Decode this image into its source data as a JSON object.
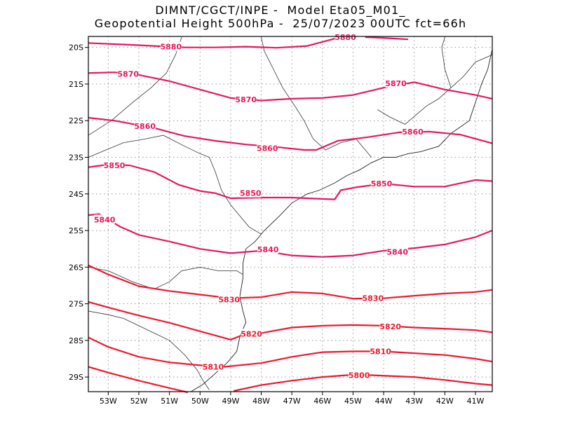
{
  "header": {
    "line1": "DIMNT/CGCT/INPE -  Model Eta05_M01_",
    "line2": "Geopotential Height 500hPa -  25/07/2023 00UTC fct=66h"
  },
  "axes": {
    "lon_range": [
      -53.65,
      -40.45
    ],
    "lat_range": [
      -29.4,
      -19.7
    ],
    "lon_ticks": [
      {
        "value": -53,
        "label": "53W"
      },
      {
        "value": -52,
        "label": "52W"
      },
      {
        "value": -51,
        "label": "51W"
      },
      {
        "value": -50,
        "label": "50W"
      },
      {
        "value": -49,
        "label": "49W"
      },
      {
        "value": -48,
        "label": "48W"
      },
      {
        "value": -47,
        "label": "47W"
      },
      {
        "value": -46,
        "label": "46W"
      },
      {
        "value": -45,
        "label": "45W"
      },
      {
        "value": -44,
        "label": "44W"
      },
      {
        "value": -43,
        "label": "43W"
      },
      {
        "value": -42,
        "label": "42W"
      },
      {
        "value": -41,
        "label": "41W"
      }
    ],
    "lat_ticks": [
      {
        "value": -20,
        "label": "20S"
      },
      {
        "value": -21,
        "label": "21S"
      },
      {
        "value": -22,
        "label": "22S"
      },
      {
        "value": -23,
        "label": "23S"
      },
      {
        "value": -24,
        "label": "24S"
      },
      {
        "value": -25,
        "label": "25S"
      },
      {
        "value": -26,
        "label": "26S"
      },
      {
        "value": -27,
        "label": "27S"
      },
      {
        "value": -28,
        "label": "28S"
      },
      {
        "value": -29,
        "label": "29S"
      }
    ],
    "grid": "dotted"
  },
  "contours": [
    {
      "level": "5880",
      "color": "#e8185a",
      "labels": [
        [
          -50.95,
          -19.98
        ],
        [
          -45.25,
          -19.72
        ]
      ],
      "points": [
        [
          -53.65,
          -19.88
        ],
        [
          -52.5,
          -19.92
        ],
        [
          -51.5,
          -19.96
        ],
        [
          -50.5,
          -20.0
        ],
        [
          -49.5,
          -20.0
        ],
        [
          -48.5,
          -19.98
        ],
        [
          -47.5,
          -20.01
        ],
        [
          -46.5,
          -19.96
        ],
        [
          -45.5,
          -19.74
        ],
        [
          -45,
          -19.72
        ]
      ]
    },
    {
      "level": "5880",
      "color": "#e8185a",
      "labels": [],
      "points": [
        [
          -44.6,
          -19.72
        ],
        [
          -44,
          -19.74
        ],
        [
          -43.2,
          -19.78
        ]
      ]
    },
    {
      "level": "5870",
      "color": "#e8185a",
      "labels": [
        [
          -52.35,
          -20.72
        ],
        [
          -48.5,
          -21.42
        ],
        [
          -43.6,
          -20.98
        ]
      ],
      "points": [
        [
          -53.65,
          -20.7
        ],
        [
          -52.8,
          -20.68
        ],
        [
          -52,
          -20.75
        ],
        [
          -51,
          -20.92
        ],
        [
          -50,
          -21.15
        ],
        [
          -49,
          -21.38
        ],
        [
          -48,
          -21.45
        ],
        [
          -47,
          -21.4
        ],
        [
          -46,
          -21.38
        ],
        [
          -45,
          -21.3
        ],
        [
          -44,
          -21.1
        ],
        [
          -43,
          -20.95
        ],
        [
          -42,
          -21.15
        ],
        [
          -41,
          -21.3
        ],
        [
          -40.45,
          -21.4
        ]
      ]
    },
    {
      "level": "5860",
      "color": "#e8185a",
      "labels": [
        [
          -51.8,
          -22.15
        ],
        [
          -47.8,
          -22.75
        ],
        [
          -43.05,
          -22.3
        ]
      ],
      "points": [
        [
          -53.65,
          -21.92
        ],
        [
          -52.8,
          -22.0
        ],
        [
          -51.5,
          -22.2
        ],
        [
          -50.5,
          -22.42
        ],
        [
          -49.5,
          -22.55
        ],
        [
          -48.5,
          -22.65
        ],
        [
          -47.5,
          -22.72
        ],
        [
          -46.6,
          -22.8
        ],
        [
          -46.2,
          -22.8
        ],
        [
          -45.5,
          -22.55
        ],
        [
          -44.5,
          -22.45
        ],
        [
          -43.5,
          -22.32
        ],
        [
          -42.5,
          -22.3
        ],
        [
          -41.5,
          -22.38
        ],
        [
          -40.45,
          -22.62
        ]
      ]
    },
    {
      "level": "5850",
      "color": "#e8185a",
      "labels": [
        [
          -52.8,
          -23.22
        ],
        [
          -48.35,
          -23.98
        ],
        [
          -44.07,
          -23.72
        ]
      ],
      "points": [
        [
          -53.65,
          -23.27
        ],
        [
          -53,
          -23.2
        ],
        [
          -52.3,
          -23.22
        ],
        [
          -51.5,
          -23.4
        ],
        [
          -50.7,
          -23.75
        ],
        [
          -50,
          -23.92
        ],
        [
          -49.5,
          -23.98
        ],
        [
          -49,
          -24.12
        ],
        [
          -48,
          -24.1
        ],
        [
          -47,
          -24.1
        ],
        [
          -46.5,
          -24.12
        ],
        [
          -45.6,
          -24.15
        ],
        [
          -45.4,
          -23.9
        ],
        [
          -44.9,
          -23.82
        ],
        [
          -44,
          -23.72
        ],
        [
          -43,
          -23.8
        ],
        [
          -42,
          -23.8
        ],
        [
          -41,
          -23.62
        ],
        [
          -40.45,
          -23.65
        ]
      ]
    },
    {
      "level": "5840",
      "color": "#e8185a",
      "labels": [
        [
          -53.12,
          -24.7
        ],
        [
          -47.78,
          -25.52
        ],
        [
          -43.55,
          -25.58
        ]
      ],
      "points": [
        [
          -53.65,
          -24.58
        ],
        [
          -53.3,
          -24.55
        ],
        [
          -52.6,
          -24.9
        ],
        [
          -52,
          -25.12
        ],
        [
          -51,
          -25.3
        ],
        [
          -50,
          -25.5
        ],
        [
          -49,
          -25.62
        ],
        [
          -48,
          -25.55
        ],
        [
          -47,
          -25.68
        ],
        [
          -46,
          -25.72
        ],
        [
          -45,
          -25.68
        ],
        [
          -44,
          -25.55
        ],
        [
          -43,
          -25.48
        ],
        [
          -42,
          -25.38
        ],
        [
          -41,
          -25.18
        ],
        [
          -40.45,
          -25.0
        ]
      ]
    },
    {
      "level": "5830",
      "color": "#f01830",
      "labels": [
        [
          -49.05,
          -26.88
        ],
        [
          -44.35,
          -26.85
        ]
      ],
      "points": [
        [
          -53.65,
          -25.95
        ],
        [
          -53,
          -26.2
        ],
        [
          -52,
          -26.52
        ],
        [
          -51,
          -26.65
        ],
        [
          -50,
          -26.75
        ],
        [
          -49,
          -26.85
        ],
        [
          -48,
          -26.82
        ],
        [
          -47,
          -26.68
        ],
        [
          -46,
          -26.72
        ],
        [
          -45,
          -26.86
        ],
        [
          -44,
          -26.85
        ],
        [
          -43,
          -26.78
        ],
        [
          -42,
          -26.72
        ],
        [
          -41,
          -26.68
        ],
        [
          -40.45,
          -26.62
        ]
      ]
    },
    {
      "level": "5820",
      "color": "#f01830",
      "labels": [
        [
          -48.32,
          -27.82
        ],
        [
          -43.78,
          -27.62
        ]
      ],
      "points": [
        [
          -53.65,
          -26.95
        ],
        [
          -53,
          -27.1
        ],
        [
          -52,
          -27.32
        ],
        [
          -51,
          -27.52
        ],
        [
          -50,
          -27.75
        ],
        [
          -49,
          -27.98
        ],
        [
          -48.5,
          -27.82
        ],
        [
          -48,
          -27.8
        ],
        [
          -47,
          -27.65
        ],
        [
          -46,
          -27.6
        ],
        [
          -45,
          -27.58
        ],
        [
          -44,
          -27.6
        ],
        [
          -43,
          -27.65
        ],
        [
          -42,
          -27.68
        ],
        [
          -41,
          -27.72
        ],
        [
          -40.45,
          -27.78
        ]
      ]
    },
    {
      "level": "5810",
      "color": "#f01830",
      "labels": [
        [
          -49.57,
          -28.72
        ],
        [
          -44.1,
          -28.3
        ]
      ],
      "points": [
        [
          -53.65,
          -27.92
        ],
        [
          -53,
          -28.18
        ],
        [
          -52,
          -28.45
        ],
        [
          -51,
          -28.6
        ],
        [
          -50,
          -28.68
        ],
        [
          -49.2,
          -28.72
        ],
        [
          -48,
          -28.62
        ],
        [
          -47,
          -28.45
        ],
        [
          -46,
          -28.32
        ],
        [
          -45,
          -28.3
        ],
        [
          -44,
          -28.3
        ],
        [
          -43,
          -28.35
        ],
        [
          -42,
          -28.4
        ],
        [
          -41,
          -28.5
        ],
        [
          -40.45,
          -28.58
        ]
      ]
    },
    {
      "level": "5800",
      "color": "#f01830",
      "labels": [
        [
          -44.8,
          -28.95
        ]
      ],
      "points": [
        [
          -53.65,
          -28.72
        ],
        [
          -53,
          -28.88
        ],
        [
          -52,
          -29.1
        ],
        [
          -51,
          -29.3
        ],
        [
          -50.4,
          -29.42
        ]
      ]
    },
    {
      "level": "5800",
      "color": "#f01830",
      "labels": [],
      "points": [
        [
          -48.9,
          -29.38
        ],
        [
          -48,
          -29.22
        ],
        [
          -47,
          -29.1
        ],
        [
          -46,
          -29.0
        ],
        [
          -45.2,
          -28.95
        ],
        [
          -44.4,
          -28.95
        ],
        [
          -43,
          -29.0
        ],
        [
          -42,
          -29.08
        ],
        [
          -41,
          -29.18
        ],
        [
          -40.45,
          -29.22
        ]
      ]
    }
  ],
  "boundaries": [
    [
      [
        -53.65,
        -23.0
      ],
      [
        -52.5,
        -22.6
      ],
      [
        -51.8,
        -22.5
      ],
      [
        -51.2,
        -22.4
      ],
      [
        -50.5,
        -22.7
      ],
      [
        -50.0,
        -22.9
      ],
      [
        -49.7,
        -23.0
      ],
      [
        -49.5,
        -23.4
      ],
      [
        -49.3,
        -23.9
      ],
      [
        -49.0,
        -24.3
      ],
      [
        -48.7,
        -24.6
      ],
      [
        -48.4,
        -24.9
      ],
      [
        -48.0,
        -25.1
      ]
    ],
    [
      [
        -53.65,
        -26.0
      ],
      [
        -53.0,
        -26.1
      ],
      [
        -52.2,
        -26.4
      ],
      [
        -51.5,
        -26.6
      ],
      [
        -51.0,
        -26.4
      ],
      [
        -50.6,
        -26.1
      ],
      [
        -50.0,
        -26.0
      ],
      [
        -49.4,
        -26.1
      ],
      [
        -48.8,
        -26.1
      ],
      [
        -48.6,
        -26.2
      ]
    ],
    [
      [
        -53.65,
        -27.2
      ],
      [
        -53.0,
        -27.3
      ],
      [
        -52.5,
        -27.4
      ],
      [
        -52.0,
        -27.6
      ],
      [
        -51.5,
        -27.8
      ],
      [
        -51.0,
        -28.0
      ],
      [
        -50.5,
        -28.4
      ],
      [
        -50.1,
        -28.8
      ],
      [
        -49.9,
        -29.1
      ],
      [
        -49.7,
        -29.35
      ]
    ],
    [
      [
        -50.6,
        -19.72
      ],
      [
        -50.8,
        -20.2
      ],
      [
        -51.1,
        -20.7
      ],
      [
        -51.6,
        -21.1
      ],
      [
        -52.2,
        -21.5
      ],
      [
        -52.9,
        -22.0
      ],
      [
        -53.65,
        -22.4
      ]
    ],
    [
      [
        -48.0,
        -19.72
      ],
      [
        -47.9,
        -20.1
      ],
      [
        -47.6,
        -20.6
      ],
      [
        -47.3,
        -21.1
      ],
      [
        -46.9,
        -21.6
      ],
      [
        -46.6,
        -22.0
      ],
      [
        -46.3,
        -22.5
      ],
      [
        -45.9,
        -22.8
      ],
      [
        -45.4,
        -22.6
      ],
      [
        -44.9,
        -22.5
      ],
      [
        -44.6,
        -22.8
      ],
      [
        -44.4,
        -23.0
      ]
    ],
    [
      [
        -44.2,
        -21.7
      ],
      [
        -43.8,
        -21.9
      ],
      [
        -43.3,
        -22.1
      ],
      [
        -42.6,
        -21.6
      ],
      [
        -42.2,
        -21.4
      ],
      [
        -41.8,
        -21.1
      ],
      [
        -41.4,
        -20.8
      ],
      [
        -41.0,
        -20.4
      ],
      [
        -40.45,
        -20.2
      ]
    ],
    [
      [
        -41.8,
        -21.1
      ],
      [
        -42.0,
        -20.6
      ],
      [
        -42.1,
        -20.0
      ],
      [
        -42.0,
        -19.72
      ]
    ]
  ],
  "coastline": [
    [
      -40.45,
      -20.05
    ],
    [
      -40.6,
      -20.6
    ],
    [
      -40.8,
      -21.0
    ],
    [
      -41.0,
      -21.5
    ],
    [
      -41.2,
      -22.0
    ],
    [
      -41.8,
      -22.35
    ],
    [
      -42.2,
      -22.7
    ],
    [
      -42.8,
      -22.85
    ],
    [
      -43.2,
      -22.9
    ],
    [
      -43.6,
      -23.0
    ],
    [
      -44.0,
      -23.0
    ],
    [
      -44.4,
      -23.15
    ],
    [
      -44.8,
      -23.35
    ],
    [
      -45.2,
      -23.5
    ],
    [
      -45.6,
      -23.7
    ],
    [
      -46.1,
      -23.9
    ],
    [
      -46.5,
      -24.0
    ],
    [
      -47.0,
      -24.25
    ],
    [
      -47.4,
      -24.6
    ],
    [
      -47.9,
      -25.0
    ],
    [
      -48.2,
      -25.3
    ],
    [
      -48.5,
      -25.5
    ],
    [
      -48.6,
      -25.9
    ],
    [
      -48.6,
      -26.3
    ],
    [
      -48.7,
      -26.8
    ],
    [
      -48.6,
      -27.2
    ],
    [
      -48.5,
      -27.5
    ],
    [
      -48.7,
      -27.9
    ],
    [
      -48.8,
      -28.3
    ],
    [
      -49.1,
      -28.6
    ],
    [
      -49.5,
      -28.9
    ],
    [
      -49.9,
      -29.2
    ],
    [
      -50.3,
      -29.4
    ]
  ]
}
